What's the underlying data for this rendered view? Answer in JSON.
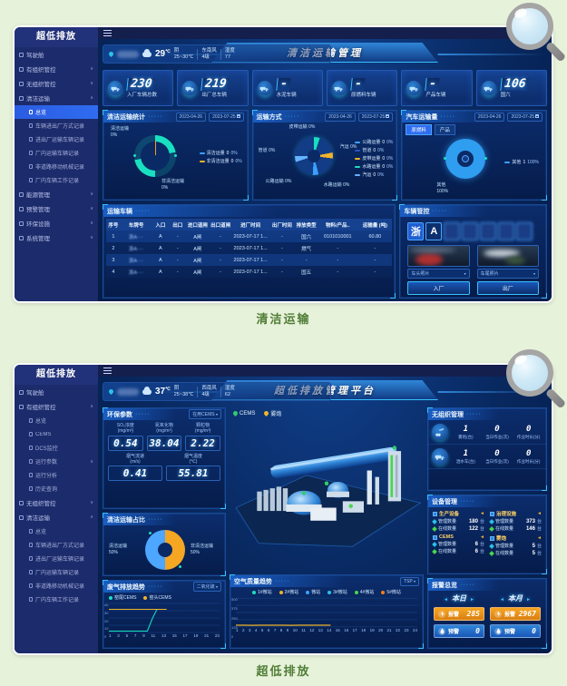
{
  "page": {
    "background": "#e7f2da",
    "captions": {
      "card1": "清洁运输",
      "card2": "超低排放"
    }
  },
  "shared": {
    "sidebar_title": "超低排放",
    "date_start": "2023-04-26",
    "date_end": "2023-07-25",
    "accent_cyan": "#29c2e8",
    "accent_yellow": "#f0b429",
    "sidebar_bg": "#1c2b6b",
    "active_item_bg": "#2f6cf0"
  },
  "dash1": {
    "sidebar": [
      {
        "label": "驾驶舱",
        "level": 1
      },
      {
        "label": "有组织管控",
        "level": 1,
        "arrow": "∨"
      },
      {
        "label": "无组织管控",
        "level": 1,
        "arrow": "∨"
      },
      {
        "label": "清洁运输",
        "level": 1,
        "arrow": "∧"
      },
      {
        "label": "总览",
        "level": 2,
        "active": true
      },
      {
        "label": "车辆进出厂方式记录",
        "level": 2
      },
      {
        "label": "进出厂运输车辆记录",
        "level": 2
      },
      {
        "label": "厂内运输车辆记录",
        "level": 2
      },
      {
        "label": "非道路移动机械记录",
        "level": 2
      },
      {
        "label": "厂内车辆工作记录",
        "level": 2
      },
      {
        "label": "能源管理",
        "level": 1,
        "arrow": "∨"
      },
      {
        "label": "预警管理",
        "level": 1,
        "arrow": "∨"
      },
      {
        "label": "环保设施",
        "level": 1,
        "arrow": "∨"
      },
      {
        "label": "系统管理",
        "level": 1,
        "arrow": "∨"
      }
    ],
    "weather": {
      "temp": "29",
      "unit": "℃",
      "cond": "阴",
      "range": "25~30℃",
      "wind_dir": "东南风",
      "wind_level": "4级",
      "hum_label": "湿度",
      "hum": "77"
    },
    "title": "清洁运输管理",
    "kpis": [
      {
        "value": "230",
        "label": "入厂车辆总数"
      },
      {
        "value": "219",
        "label": "出厂总车辆"
      },
      {
        "value": "-",
        "label": "水泥车辆"
      },
      {
        "value": "-",
        "label": "原燃料车辆"
      },
      {
        "value": "-",
        "label": "产品车辆"
      },
      {
        "value": "106",
        "label": "国六"
      }
    ],
    "panel_a": {
      "title": "清洁运输统计",
      "labels": [
        {
          "text": "清洁运输",
          "pct": "0%"
        },
        {
          "text": "非清洁运输",
          "pct": "0%"
        }
      ],
      "legend": [
        {
          "name": "清洁运量",
          "count": "0",
          "pct": "0%",
          "color": "#3aa1ff"
        },
        {
          "name": "非清洁运量",
          "count": "0",
          "pct": "0%",
          "color": "#f0b429"
        }
      ]
    },
    "panel_b": {
      "title": "运输方式",
      "callouts": [
        {
          "text": "皮带运输",
          "pct": "0%"
        },
        {
          "text": "管道",
          "pct": "0%"
        },
        {
          "text": "公路运输",
          "pct": "0%"
        },
        {
          "text": "水路运输",
          "pct": "0%"
        },
        {
          "text": "汽运",
          "pct": "0%"
        }
      ],
      "legend": [
        {
          "name": "公路运量",
          "count": "0",
          "pct": "0%",
          "color": "#3aa1ff"
        },
        {
          "name": "管道",
          "count": "0",
          "pct": "0%",
          "color": "#2655c9"
        },
        {
          "name": "皮带运量",
          "count": "0",
          "pct": "0%",
          "color": "#f0b429"
        },
        {
          "name": "水路运量",
          "count": "0",
          "pct": "0%",
          "color": "#19e0c0"
        },
        {
          "name": "汽运",
          "count": "0",
          "pct": "0%",
          "color": "#66b3ff"
        }
      ]
    },
    "panel_c": {
      "title": "汽车运输量",
      "tabs": [
        "原燃料",
        "产品"
      ],
      "callout": {
        "text": "其他",
        "pct": "100%"
      },
      "legend": [
        {
          "name": "其他",
          "count": "1",
          "pct": "100%",
          "color": "#3aa1ff"
        }
      ]
    },
    "table": {
      "title": "运输车辆",
      "columns": [
        "序号",
        "车牌号",
        "入口",
        "出口",
        "进口道闸",
        "出口道闸",
        "进厂时间",
        "出厂时间",
        "排放类型",
        "物料/产品..",
        "运输量 (吨)"
      ],
      "rows": [
        [
          "1",
          "浙A····",
          "A",
          "-",
          "A闸",
          "-",
          "2023-07-17 1...",
          "-",
          "国六",
          "0101010001",
          "60.80"
        ],
        [
          "2",
          "浙A····",
          "A",
          "-",
          "A闸",
          "-",
          "2023-07-17 1...",
          "-",
          "燃气",
          "-",
          "-"
        ],
        [
          "3",
          "浙A····",
          "A",
          "-",
          "A闸",
          "-",
          "2023-07-17 1...",
          "-",
          "-",
          "-",
          "-"
        ],
        [
          "4",
          "浙A····",
          "A",
          "-",
          "A闸",
          "-",
          "2023-07-17 1...",
          "-",
          "国五",
          "-",
          "-"
        ]
      ]
    },
    "vehicle": {
      "title": "车辆管控",
      "plate": [
        "浙",
        "A",
        "·",
        "·",
        "·",
        "·",
        "·"
      ],
      "photos": [
        {
          "label": "车头照片"
        },
        {
          "label": "车尾照片"
        }
      ],
      "buttons": [
        "入厂",
        "出厂"
      ]
    }
  },
  "dash2": {
    "sidebar": [
      {
        "label": "驾驶舱",
        "level": 1
      },
      {
        "label": "有组织管控",
        "level": 1,
        "arrow": "∧"
      },
      {
        "label": "总览",
        "level": 2
      },
      {
        "label": "CEMS",
        "level": 2
      },
      {
        "label": "DCS监控",
        "level": 2
      },
      {
        "label": "运行参数",
        "level": 2,
        "arrow": "∨"
      },
      {
        "label": "运行分析",
        "level": 2
      },
      {
        "label": "历史查询",
        "level": 2
      },
      {
        "label": "无组织管控",
        "level": 1,
        "arrow": "∨"
      },
      {
        "label": "清洁运输",
        "level": 1,
        "arrow": "∧"
      },
      {
        "label": "总览",
        "level": 2
      },
      {
        "label": "车辆进出厂方式记录",
        "level": 2
      },
      {
        "label": "进出厂运输车辆记录",
        "level": 2
      },
      {
        "label": "厂内运输车辆记录",
        "level": 2
      },
      {
        "label": "非道路移动机械记录",
        "level": 2
      },
      {
        "label": "厂内车辆工作记录",
        "level": 2
      }
    ],
    "weather": {
      "temp": "37",
      "unit": "℃",
      "cond": "阴",
      "range": "25~38℃",
      "wind_dir": "西南风",
      "wind_level": "4级",
      "hum_label": "湿度",
      "hum": "62"
    },
    "title": "超低排放管理平台",
    "legend_chips": [
      {
        "label": "CEMS",
        "color": "#2ecc71"
      },
      {
        "label": "雾炮",
        "color": "#f0b429"
      }
    ],
    "env_params": {
      "title": "环保参数",
      "selector": "在用CEMS",
      "items": [
        {
          "label": "SO₂浓度",
          "unit": "(mg/m³)",
          "value": "0.54"
        },
        {
          "label": "氮氧化物",
          "unit": "(mg/m³)",
          "value": "38.04"
        },
        {
          "label": "颗粒物",
          "unit": "(mg/m³)",
          "value": "2.22"
        },
        {
          "label": "烟气流速",
          "unit": "(m/s)",
          "value": "0.41"
        },
        {
          "label": "烟气温度",
          "unit": "(℃)",
          "value": "55.81"
        }
      ]
    },
    "clean_ratio": {
      "title": "清洁运输占比",
      "labels": [
        {
          "text": "清洁运输",
          "pct": "50%"
        },
        {
          "text": "非清洁运输",
          "pct": "50%"
        }
      ]
    },
    "unorganized": {
      "title": "无组织管理",
      "rows": [
        {
          "icon": "fog-cannon",
          "stats": [
            {
              "value": "1",
              "label": "雾炮(台)"
            },
            {
              "value": "0",
              "label": "当日作业(次)"
            },
            {
              "value": "0",
              "label": "作业时长(分)"
            }
          ]
        },
        {
          "icon": "sprinkler-truck",
          "stats": [
            {
              "value": "1",
              "label": "洒水车(台)"
            },
            {
              "value": "0",
              "label": "当日作业(次)"
            },
            {
              "value": "0",
              "label": "作业时长(分)"
            }
          ]
        }
      ]
    },
    "devices": {
      "title": "设备管理",
      "blocks": [
        {
          "name": "生产设备",
          "rows": [
            {
              "label": "管理数量",
              "value": "180",
              "unit": "台"
            },
            {
              "label": "在线数量",
              "value": "122",
              "unit": "台"
            }
          ]
        },
        {
          "name": "治理设施",
          "rows": [
            {
              "label": "管理数量",
              "value": "373",
              "unit": "台"
            },
            {
              "label": "在线数量",
              "value": "146",
              "unit": "台"
            }
          ]
        },
        {
          "name": "CEMS",
          "rows": [
            {
              "label": "管理数量",
              "value": "6",
              "unit": "台"
            },
            {
              "label": "在线数量",
              "value": "6",
              "unit": "台"
            }
          ]
        },
        {
          "name": "雾炮",
          "rows": [
            {
              "label": "管理数量",
              "value": "5",
              "unit": "台"
            },
            {
              "label": "在线数量",
              "value": "5",
              "unit": "台"
            }
          ]
        }
      ]
    },
    "alarms": {
      "title": "报警总览",
      "groups": [
        {
          "name": "本日",
          "alarm_label": "报警",
          "alarm": "285",
          "warn_label": "预警",
          "warn": "0"
        },
        {
          "name": "本月",
          "alarm_label": "报警",
          "alarm": "2967",
          "warn_label": "预警",
          "warn": "0"
        }
      ]
    },
    "gas_trend": {
      "title": "废气排放趋势",
      "selector": "二氧化硫"
    },
    "air_trend": {
      "title": "空气质量趋势",
      "selector": "TSP"
    }
  },
  "chart_data": [
    {
      "id": "clean-transport-stats",
      "type": "pie",
      "title": "清洁运输统计",
      "date_range": [
        "2023-04-26",
        "2023-07-25"
      ],
      "slices": [
        {
          "label": "清洁运输",
          "value": 0
        },
        {
          "label": "非清洁运输",
          "value": 0
        }
      ],
      "legend": [
        {
          "label": "清洁运量",
          "count": 0,
          "pct": "0%"
        },
        {
          "label": "非清洁运量",
          "count": 0,
          "pct": "0%"
        }
      ]
    },
    {
      "id": "transport-mode",
      "type": "pie",
      "title": "运输方式",
      "date_range": [
        "2023-04-26",
        "2023-07-25"
      ],
      "slices": [
        {
          "label": "公路运量",
          "value": 0,
          "pct": "0%"
        },
        {
          "label": "管道",
          "value": 0,
          "pct": "0%"
        },
        {
          "label": "皮带运量",
          "value": 0,
          "pct": "0%"
        },
        {
          "label": "水路运量",
          "value": 0,
          "pct": "0%"
        },
        {
          "label": "汽运",
          "value": 0,
          "pct": "0%"
        }
      ]
    },
    {
      "id": "vehicle-volume",
      "type": "pie",
      "title": "汽车运输量",
      "tabs": [
        "原燃料",
        "产品"
      ],
      "date_range": [
        "2023-04-26",
        "2023-07-25"
      ],
      "slices": [
        {
          "label": "其他",
          "value": 1,
          "pct": "100%"
        }
      ]
    },
    {
      "id": "clean-ratio",
      "type": "pie",
      "title": "清洁运输占比",
      "slices": [
        {
          "label": "清洁运输",
          "value": 50,
          "pct": "50%",
          "color": "#4da6ff"
        },
        {
          "label": "非清洁运输",
          "value": 50,
          "pct": "50%",
          "color": "#f5a623"
        }
      ]
    },
    {
      "id": "gas-emission-trend",
      "type": "line",
      "title": "废气排放趋势",
      "pollutant": "二氧化硫",
      "x_range": [
        1,
        24
      ],
      "x_ticks": [
        1,
        3,
        5,
        7,
        9,
        11,
        13,
        15,
        17,
        19,
        21,
        23
      ],
      "ylim": [
        0,
        40
      ],
      "series": [
        {
          "name": "窑尾CEMS",
          "color": "#19e0c0",
          "x": [
            1,
            2,
            3,
            4,
            5,
            6,
            7,
            8,
            9,
            10,
            11,
            12,
            13
          ],
          "values": [
            2,
            2,
            2,
            2,
            2,
            2,
            2,
            2,
            2,
            20,
            34,
            34,
            34
          ]
        },
        {
          "name": "窑头CEMS",
          "color": "#f0b429",
          "x": [
            1,
            2,
            3,
            4,
            5,
            6,
            7,
            8,
            9,
            10,
            11,
            12,
            13
          ],
          "values": [
            34,
            34,
            34,
            34,
            34,
            34,
            34,
            34,
            34,
            34,
            34,
            34,
            34
          ]
        }
      ]
    },
    {
      "id": "air-quality-trend",
      "type": "line",
      "title": "空气质量趋势",
      "pollutant": "TSP",
      "x_range": [
        1,
        24
      ],
      "x_ticks": [
        1,
        2,
        3,
        4,
        5,
        6,
        7,
        8,
        9,
        10,
        11,
        12,
        13,
        14,
        15,
        16,
        17,
        18,
        19,
        20,
        21,
        22,
        23,
        24
      ],
      "ylim": [
        0,
        500
      ],
      "series": [
        {
          "name": "1#微站",
          "color": "#19e0c0"
        },
        {
          "name": "2#微站",
          "color": "#f0b429",
          "x": [
            1,
            2,
            3,
            4,
            5,
            6,
            7,
            8,
            9,
            10,
            11,
            12,
            13
          ],
          "values": [
            30,
            30,
            28,
            30,
            32,
            30,
            30,
            28,
            30,
            30,
            32,
            30,
            30
          ]
        },
        {
          "name": "微站",
          "color": "#3aa1ff"
        },
        {
          "name": "3#微站",
          "color": "#29c2e8"
        },
        {
          "name": "4#微站",
          "color": "#49d849"
        },
        {
          "name": "5#微站",
          "color": "#f57f17"
        }
      ]
    }
  ]
}
